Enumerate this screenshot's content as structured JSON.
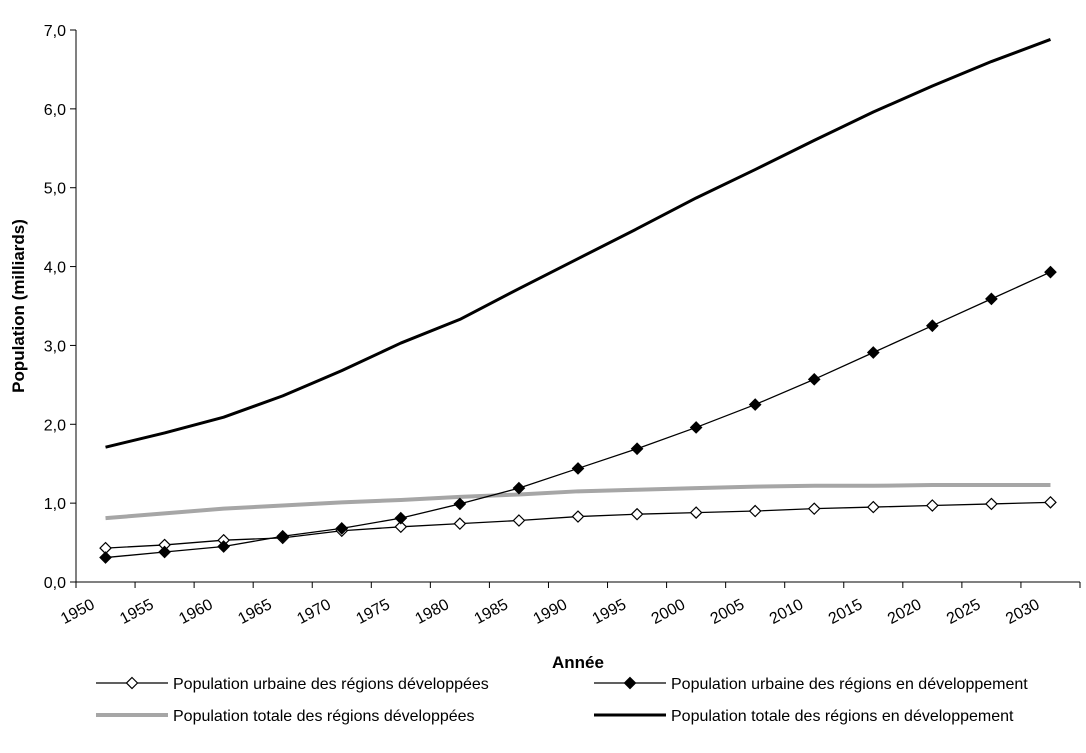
{
  "chart_data": {
    "type": "line",
    "title": "",
    "xlabel": "Année",
    "ylabel": "Population (milliards)",
    "ylim": [
      0,
      7
    ],
    "yticks": [
      "0,0",
      "1,0",
      "2,0",
      "3,0",
      "4,0",
      "5,0",
      "6,0",
      "7,0"
    ],
    "categories": [
      "1950",
      "1955",
      "1960",
      "1965",
      "1970",
      "1975",
      "1980",
      "1985",
      "1990",
      "1995",
      "2000",
      "2005",
      "2010",
      "2015",
      "2020",
      "2025",
      "2030"
    ],
    "grid": false,
    "legend_position": "bottom",
    "series": [
      {
        "name": "Population urbaine des régions développées",
        "style": "open-diamond",
        "color": "#000000",
        "values": [
          0.43,
          0.47,
          0.53,
          0.56,
          0.65,
          0.7,
          0.74,
          0.78,
          0.83,
          0.86,
          0.88,
          0.9,
          0.93,
          0.95,
          0.97,
          0.99,
          1.01
        ]
      },
      {
        "name": "Population urbaine des régions en développement",
        "style": "filled-diamond",
        "color": "#000000",
        "values": [
          0.31,
          0.38,
          0.45,
          0.58,
          0.68,
          0.81,
          0.99,
          1.19,
          1.44,
          1.69,
          1.96,
          2.25,
          2.57,
          2.91,
          3.25,
          3.59,
          3.93
        ]
      },
      {
        "name": "Population totale des régions développées",
        "style": "thick-gray",
        "color": "#a6a6a6",
        "values": [
          0.81,
          0.87,
          0.93,
          0.97,
          1.01,
          1.04,
          1.08,
          1.11,
          1.15,
          1.17,
          1.19,
          1.21,
          1.22,
          1.22,
          1.23,
          1.23,
          1.23
        ]
      },
      {
        "name": "Population totale des régions en développement",
        "style": "thick-black",
        "color": "#000000",
        "values": [
          1.71,
          1.89,
          2.09,
          2.36,
          2.68,
          3.03,
          3.33,
          3.72,
          4.1,
          4.48,
          4.87,
          5.23,
          5.6,
          5.96,
          6.29,
          6.6,
          6.88
        ]
      }
    ]
  }
}
